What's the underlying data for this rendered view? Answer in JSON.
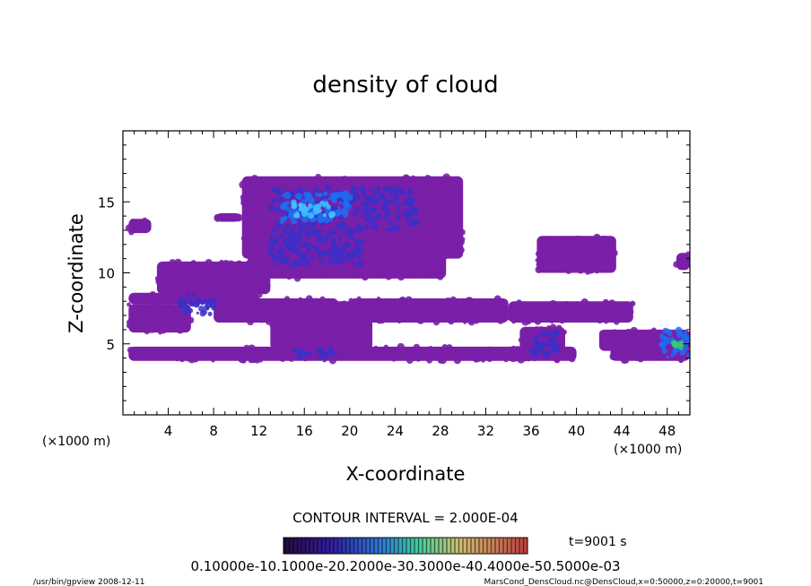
{
  "chart_data": {
    "type": "heatmap",
    "title": "density of cloud",
    "xlabel": "X-coordinate",
    "ylabel": "Z-coordinate",
    "x_unit": "(×1000 m)",
    "y_unit": "(×1000 m)",
    "xlim": [
      0,
      50
    ],
    "ylim": [
      0,
      20
    ],
    "x_ticks": [
      4,
      8,
      12,
      16,
      20,
      24,
      28,
      32,
      36,
      40,
      44,
      48
    ],
    "y_ticks": [
      5,
      10,
      15
    ],
    "contour_interval": "CONTOUR INTERVAL = 2.000E-04",
    "time_label": "t=9001 s",
    "colorbar_labels": "0.10000e-10.1000e-20.2000e-30.3000e-40.4000e-50.5000e-03",
    "colorbar_range": [
      0,
      0.0006
    ],
    "colors": {
      "base": "#7a1fa8",
      "mid": "#3a30c8",
      "high": "#1e6cf0",
      "peak": "#3fc3ff",
      "green": "#30d070"
    },
    "regions": [
      {
        "x": [
          10.5,
          30
        ],
        "z": [
          11,
          16.8
        ],
        "level": 1
      },
      {
        "x": [
          11,
          28.5
        ],
        "z": [
          9.6,
          12
        ],
        "level": 1
      },
      {
        "x": [
          3,
          13
        ],
        "z": [
          8.5,
          10.8
        ],
        "level": 1
      },
      {
        "x": [
          0.5,
          12
        ],
        "z": [
          7.8,
          8.6
        ],
        "level": 1
      },
      {
        "x": [
          0.5,
          6
        ],
        "z": [
          5.8,
          7.8
        ],
        "level": 1
      },
      {
        "x": [
          8,
          19
        ],
        "z": [
          6.5,
          8.2
        ],
        "level": 1
      },
      {
        "x": [
          13,
          22
        ],
        "z": [
          4.6,
          8.0
        ],
        "level": 1
      },
      {
        "x": [
          20,
          34
        ],
        "z": [
          6.5,
          8.2
        ],
        "level": 1
      },
      {
        "x": [
          34,
          45
        ],
        "z": [
          6.5,
          8.0
        ],
        "level": 1
      },
      {
        "x": [
          0.5,
          40
        ],
        "z": [
          3.8,
          4.8
        ],
        "level": 1
      },
      {
        "x": [
          35,
          39
        ],
        "z": [
          4.0,
          6.2
        ],
        "level": 1
      },
      {
        "x": [
          36.5,
          43.5
        ],
        "z": [
          10.0,
          12.6
        ],
        "level": 1
      },
      {
        "x": [
          42,
          50
        ],
        "z": [
          4.5,
          6.0
        ],
        "level": 1
      },
      {
        "x": [
          43,
          50
        ],
        "z": [
          3.8,
          4.8
        ],
        "level": 1
      },
      {
        "x": [
          0.5,
          2.5
        ],
        "z": [
          12.8,
          13.8
        ],
        "level": 1
      },
      {
        "x": [
          8.2,
          10.4
        ],
        "z": [
          13.6,
          14.2
        ],
        "level": 1
      },
      {
        "x": [
          48.8,
          50
        ],
        "z": [
          10.2,
          11.4
        ],
        "level": 1
      },
      {
        "x": [
          13,
          26
        ],
        "z": [
          13,
          16
        ],
        "level": 2
      },
      {
        "x": [
          13,
          21
        ],
        "z": [
          10.5,
          13
        ],
        "level": 2
      },
      {
        "x": [
          14,
          20
        ],
        "z": [
          13.5,
          15.6
        ],
        "level": 3
      },
      {
        "x": [
          15,
          18.5
        ],
        "z": [
          14,
          15
        ],
        "level": 4
      },
      {
        "x": [
          36,
          38.5
        ],
        "z": [
          4.2,
          5.8
        ],
        "level": 2
      },
      {
        "x": [
          47.5,
          50
        ],
        "z": [
          4.0,
          6.0
        ],
        "level": 3
      },
      {
        "x": [
          48.5,
          49.5
        ],
        "z": [
          4.6,
          5.2
        ],
        "level": 5
      },
      {
        "x": [
          5,
          8
        ],
        "z": [
          7,
          8.5
        ],
        "level": 2
      },
      {
        "x": [
          15,
          19
        ],
        "z": [
          4.0,
          4.6
        ],
        "level": 2
      }
    ]
  },
  "footer": {
    "left": "/usr/bin/gpview   2008-12-11",
    "right": "MarsCond_DensCloud.nc@DensCloud,x=0:50000,z=0:20000,t=9001"
  }
}
